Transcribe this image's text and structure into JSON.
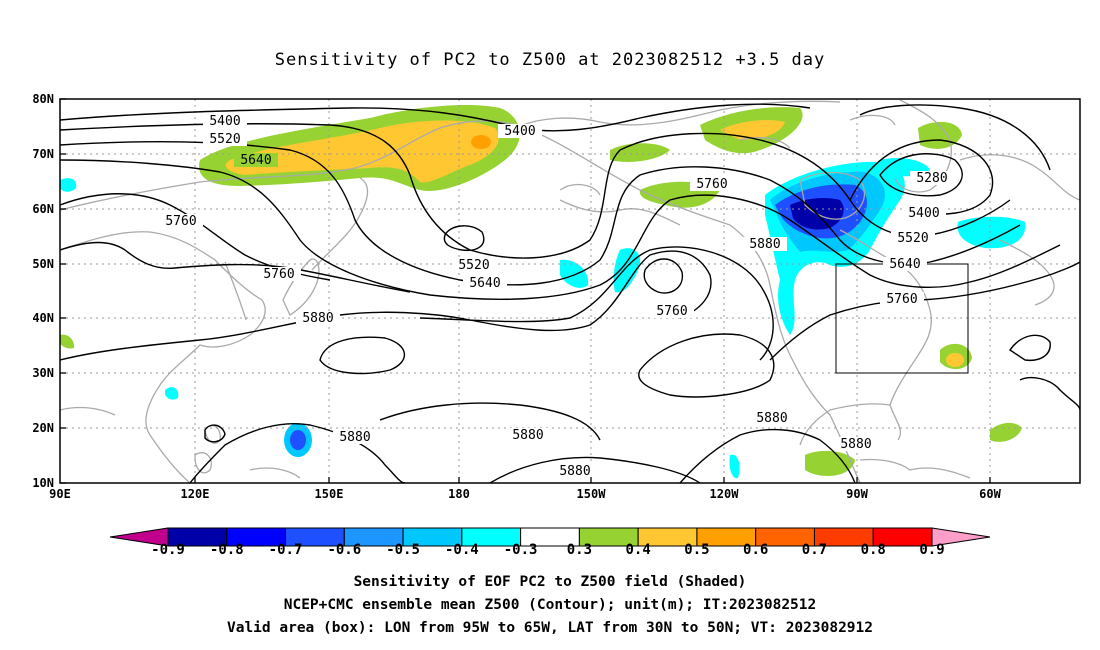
{
  "title": "Sensitivity of PC2 to Z500 at 2023082512 +3.5 day",
  "lat_labels": [
    "80N",
    "70N",
    "60N",
    "50N",
    "40N",
    "30N",
    "20N",
    "10N"
  ],
  "lon_labels": [
    "90E",
    "120E",
    "150E",
    "180",
    "150W",
    "120W",
    "90W",
    "60W"
  ],
  "contour_labels": [
    "5400",
    "5520",
    "5640",
    "5400",
    "5760",
    "5760",
    "5880",
    "5520",
    "5640",
    "5760",
    "5760",
    "5880",
    "5880",
    "5880",
    "5880",
    "5880",
    "5280",
    "5400",
    "5520",
    "5640",
    "5760",
    "5880"
  ],
  "colorbar": {
    "labels": [
      "-0.9",
      "-0.8",
      "-0.7",
      "-0.6",
      "-0.5",
      "-0.4",
      "-0.3",
      "0.3",
      "0.4",
      "0.5",
      "0.6",
      "0.7",
      "0.8",
      "0.9"
    ],
    "colors": [
      "#0000a8",
      "#0000ff",
      "#1e50ff",
      "#1e96ff",
      "#00c8ff",
      "#00ffff",
      "#ffffff",
      "#96d232",
      "#ffc832",
      "#ffa000",
      "#ff6400",
      "#ff3c00",
      "#ff0000"
    ],
    "low_extend_color": "#c0008c",
    "high_extend_color": "#ff9ec8"
  },
  "captions": {
    "line1": "Sensitivity of EOF PC2 to Z500 field (Shaded)",
    "line2": "NCEP+CMC ensemble mean Z500 (Contour); unit(m); IT:2023082512",
    "line3": "Valid area (box): LON from 95W to 65W, LAT from 30N to 50N; VT: 2023082912"
  }
}
